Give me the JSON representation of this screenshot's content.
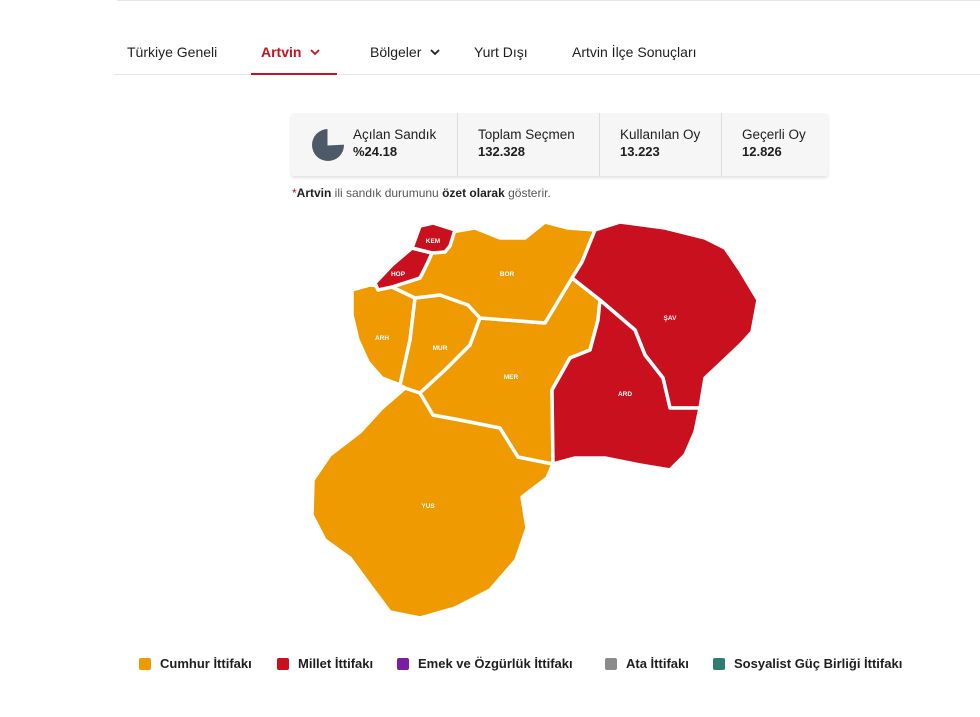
{
  "nav": {
    "tabs": [
      {
        "label": "Türkiye Geneli",
        "active": false,
        "dropdown": false
      },
      {
        "label": "Artvin",
        "active": true,
        "dropdown": true
      },
      {
        "label": "Bölgeler",
        "active": false,
        "dropdown": true
      },
      {
        "label": "Yurt Dışı",
        "active": false,
        "dropdown": false
      },
      {
        "label": "Artvin İlçe Sonuçları",
        "active": false,
        "dropdown": false
      }
    ]
  },
  "summary": {
    "opened": {
      "label": "Açılan Sandık",
      "value": "%24.18",
      "fraction": 0.2418,
      "icon": "pie-chart-icon"
    },
    "total_voters": {
      "label": "Toplam Seçmen",
      "value": "132.328"
    },
    "votes_cast": {
      "label": "Kullanılan Oy",
      "value": "13.223"
    },
    "valid_votes": {
      "label": "Geçerli Oy",
      "value": "12.826"
    }
  },
  "note": {
    "star": "*",
    "province": "Artvin",
    "part1": " ili sandık durumunu ",
    "emphasis": "özet olarak",
    "part2": " gösterir."
  },
  "colors": {
    "cumhur": "#ee9a00",
    "millet": "#c8101e",
    "emek": "#7b1fa2",
    "ata": "#8a8a8a",
    "sgb": "#2e7d6e",
    "accent": "#c8101e"
  },
  "map": {
    "districts": [
      {
        "code": "KEM",
        "winner": "millet"
      },
      {
        "code": "HOP",
        "winner": "millet"
      },
      {
        "code": "BOR",
        "winner": "cumhur"
      },
      {
        "code": "ŞAV",
        "winner": "millet"
      },
      {
        "code": "ARH",
        "winner": "cumhur"
      },
      {
        "code": "MUR",
        "winner": "cumhur"
      },
      {
        "code": "MER",
        "winner": "cumhur"
      },
      {
        "code": "ARD",
        "winner": "millet"
      },
      {
        "code": "YUS",
        "winner": "cumhur"
      }
    ]
  },
  "legend": [
    {
      "label": "Cumhur İttifakı",
      "color": "#ee9a00"
    },
    {
      "label": "Millet İttifakı",
      "color": "#c8101e"
    },
    {
      "label": "Emek ve Özgürlük İttifakı",
      "color": "#7b1fa2"
    },
    {
      "label": "Ata İttifakı",
      "color": "#8a8a8a"
    },
    {
      "label": "Sosyalist Güç Birliği İttifakı",
      "color": "#2e7d6e"
    }
  ]
}
